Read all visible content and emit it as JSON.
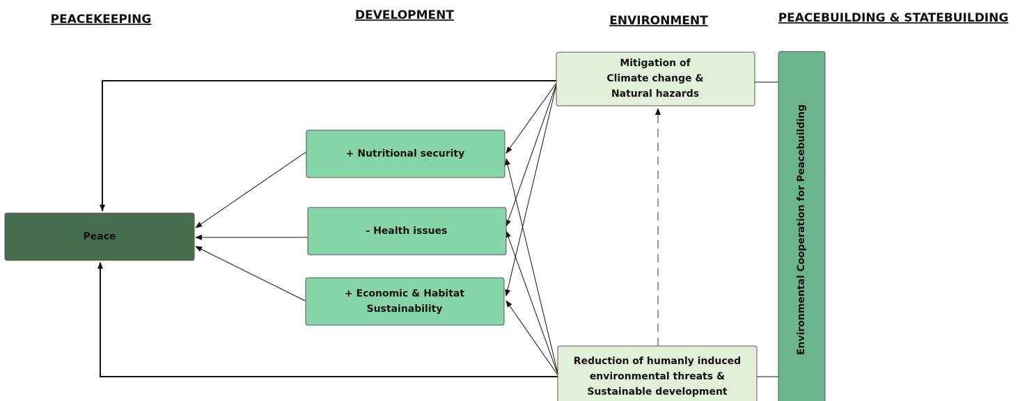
{
  "headers": [
    "PEACEKEEPING",
    "DEVELOPMENT",
    "ENVIRONMENT",
    "PEACEBUILDING & STATEBUILDING"
  ],
  "nodes": [
    {
      "lines": [
        "Peace"
      ]
    },
    {
      "lines": [
        "+ Nutritional security"
      ]
    },
    {
      "lines": [
        "- Health issues"
      ]
    },
    {
      "lines": [
        "+ Economic & Habitat",
        "Sustainability"
      ]
    },
    {
      "lines": [
        "Mitigation of",
        "Climate change &",
        "Natural hazards"
      ]
    },
    {
      "lines": [
        "Reduction of humanly induced",
        "environmental threats &",
        "Sustainable development"
      ]
    },
    {
      "lines": [
        "Environmental Cooperation for Peacebuilding"
      ]
    }
  ]
}
